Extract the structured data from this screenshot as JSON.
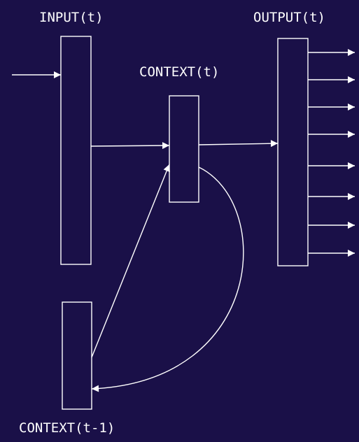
{
  "labels": {
    "input": "INPUT(t)",
    "output": "OUTPUT(t)",
    "context": "CONTEXT(t)",
    "context_prev": "CONTEXT(t-1)"
  },
  "colors": {
    "background": "#1a1048",
    "stroke": "#ffffff"
  }
}
